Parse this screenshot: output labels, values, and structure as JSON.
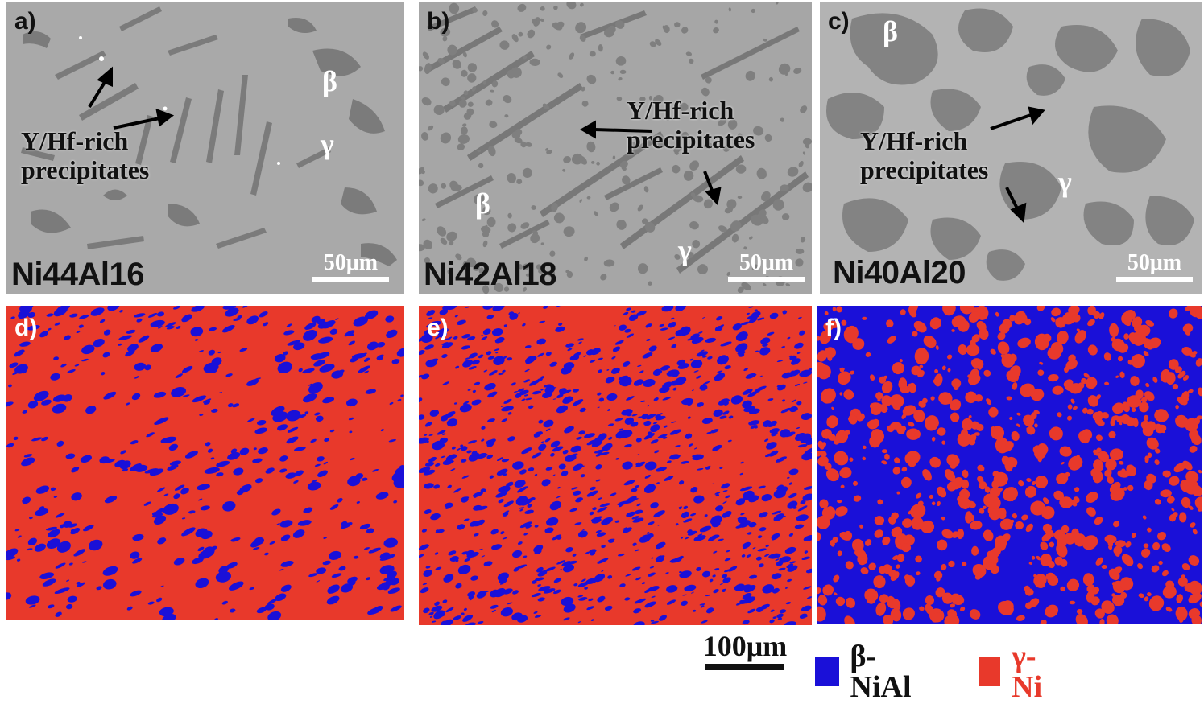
{
  "panels": {
    "a": {
      "tag": "a)",
      "sample": "Ni44Al16",
      "scale": "50μm",
      "beta": "β",
      "gamma": "γ",
      "annot_line1": "Y/Hf-rich",
      "annot_line2": "precipitates"
    },
    "b": {
      "tag": "b)",
      "sample": "Ni42Al18",
      "scale": "50μm",
      "beta": "β",
      "gamma": "γ",
      "annot_line1": "Y/Hf-rich",
      "annot_line2": "precipitates"
    },
    "c": {
      "tag": "c)",
      "sample": "Ni40Al20",
      "scale": "50μm",
      "beta": "β",
      "gamma": "γ",
      "annot_line1": "Y/Hf-rich",
      "annot_line2": "precipitates"
    },
    "d": {
      "tag": "d)"
    },
    "e": {
      "tag": "e)"
    },
    "f": {
      "tag": "f)"
    }
  },
  "legend": {
    "scale": "100μm",
    "items": [
      {
        "label": "β-NiAl",
        "color": "#1a10d8"
      },
      {
        "label": "γ-Ni",
        "color": "#e8392b"
      }
    ]
  },
  "colors": {
    "sem_background": "#a8a8a8",
    "sem_particle": "#7a7a7a",
    "map_blue": "#1a10d8",
    "map_red": "#e8392b"
  }
}
